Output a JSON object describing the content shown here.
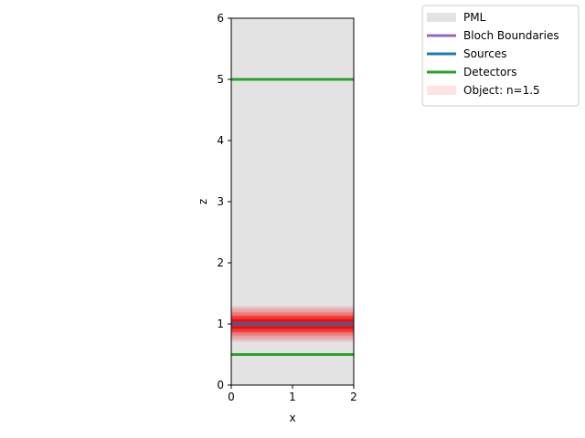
{
  "chart_data": {
    "type": "diagram",
    "title": "",
    "xlabel": "x",
    "ylabel": "z",
    "xlim": [
      0,
      2
    ],
    "ylim": [
      0,
      6
    ],
    "x_ticks": [
      0,
      1,
      2
    ],
    "y_ticks": [
      0,
      1,
      2,
      3,
      4,
      5,
      6
    ],
    "x_tick_labels": [
      "0",
      "1",
      "2"
    ],
    "y_tick_labels": [
      "0",
      "1",
      "2",
      "3",
      "4",
      "5",
      "6"
    ],
    "background_region": {
      "name": "PML",
      "color": "#e3e3e3",
      "x": [
        0,
        2
      ],
      "z": [
        0,
        6
      ]
    },
    "object": {
      "name": "Object: n=1.5",
      "color": "#ff0000",
      "z_center": 1.0,
      "z_spread": 0.3
    },
    "source": {
      "name": "Sources",
      "color": "#1f77b4",
      "z": 1.0,
      "x": [
        0,
        2
      ]
    },
    "detectors": {
      "name": "Detectors",
      "color": "#2ca02c",
      "z": [
        0.5,
        5.0
      ],
      "x": [
        0,
        2
      ]
    },
    "legend": {
      "placement": "top-right outside",
      "entries": [
        {
          "label": "PML",
          "color": "#e3e3e3"
        },
        {
          "label": "Bloch Boundaries",
          "color": "#9467bd"
        },
        {
          "label": "Sources",
          "color": "#1f77b4"
        },
        {
          "label": "Detectors",
          "color": "#2ca02c"
        },
        {
          "label": "Object: n=1.5",
          "color": "#fde3e3"
        }
      ]
    }
  }
}
